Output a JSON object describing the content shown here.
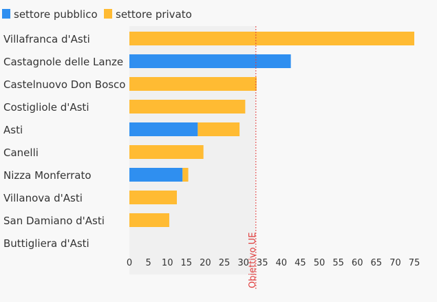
{
  "chart_data": {
    "type": "bar",
    "orientation": "horizontal",
    "stacked": true,
    "categories": [
      "Villafranca d'Asti",
      "Castagnole delle Lanze",
      "Castelnuovo Don Bosco",
      "Costigliole d'Asti",
      "Asti",
      "Canelli",
      "Nizza Monferrato",
      "Villanova d'Asti",
      "San Damiano d'Asti",
      "Buttigliera d'Asti"
    ],
    "series": [
      {
        "name": "settore pubblico",
        "color": "#2f8ff0",
        "values": [
          0,
          42.5,
          0,
          0,
          18,
          0,
          14,
          0,
          0,
          0
        ]
      },
      {
        "name": "settore privato",
        "color": "#ffbb33",
        "values": [
          75,
          0,
          33.5,
          30.5,
          11,
          19.5,
          1.5,
          12.5,
          10.5,
          0
        ]
      }
    ],
    "xlim": [
      0,
      75
    ],
    "xticks": [
      "0",
      "5",
      "10",
      "15",
      "20",
      "25",
      "30",
      "35",
      "40",
      "45",
      "50",
      "55",
      "60",
      "65",
      "70",
      "75"
    ],
    "reference_line": {
      "value": 33.3,
      "label": "Obiettivo UE",
      "color": "#e03c3c"
    },
    "legend_position": "top-left",
    "grid": false
  }
}
